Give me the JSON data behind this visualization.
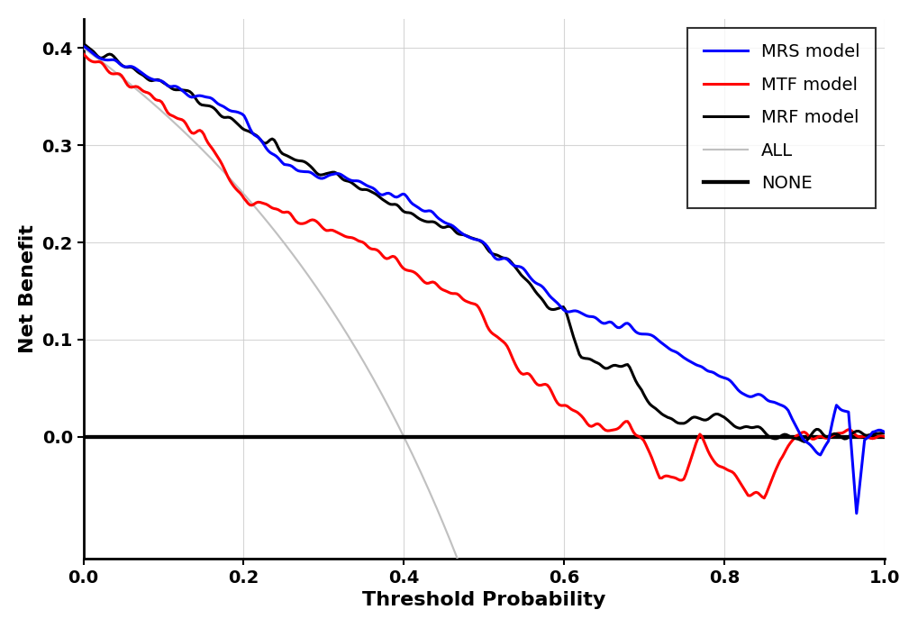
{
  "title": "",
  "xlabel": "Threshold Probability",
  "ylabel": "Net Benefit",
  "xlim": [
    0.0,
    1.0
  ],
  "ylim": [
    -0.125,
    0.43
  ],
  "yticks": [
    0.0,
    0.1,
    0.2,
    0.3,
    0.4
  ],
  "ytick_labels": [
    "0.0",
    "0.1",
    "0.2",
    "0.3",
    "0.4"
  ],
  "xticks": [
    0.0,
    0.2,
    0.4,
    0.6,
    0.8,
    1.0
  ],
  "xlabel_fontsize": 16,
  "ylabel_fontsize": 16,
  "tick_fontsize": 14,
  "legend_fontsize": 14,
  "linewidth": 2.2,
  "background_color": "#ffffff",
  "grid_color": "#cccccc",
  "prevalence": 0.4,
  "colors": {
    "MRS": "#0000ff",
    "MTF": "#ff0000",
    "MRF": "#000000",
    "ALL": "#c0c0c0",
    "NONE": "#000000"
  },
  "seed": 12345
}
